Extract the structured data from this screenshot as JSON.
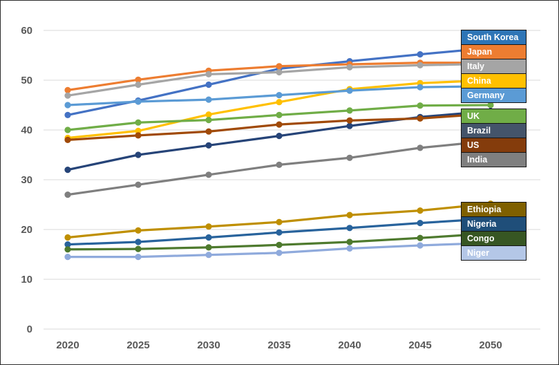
{
  "chart_data": {
    "type": "line",
    "title": "",
    "xlabel": "",
    "ylabel": "",
    "x": [
      2020,
      2025,
      2030,
      2035,
      2040,
      2045,
      2050
    ],
    "yticks": [
      0,
      10,
      20,
      30,
      40,
      50,
      60
    ],
    "ylim": [
      0,
      60
    ],
    "grid": true,
    "marker": "circle",
    "legend_position": "right-overlay",
    "gridline_color": "#D9D9D9",
    "tick_label_color": "#595959",
    "series": [
      {
        "name": "South Korea",
        "line_color": "#4472C4",
        "legend_color": "#2E75B6",
        "values": [
          43.0,
          45.9,
          49.1,
          52.3,
          53.8,
          55.2,
          56.5
        ]
      },
      {
        "name": "Japan",
        "line_color": "#ED7D31",
        "legend_color": "#ED7D31",
        "values": [
          48.0,
          50.1,
          51.9,
          52.8,
          53.2,
          53.5,
          53.5
        ]
      },
      {
        "name": "Italy",
        "line_color": "#A5A5A5",
        "legend_color": "#A5A5A5",
        "values": [
          46.9,
          49.1,
          51.2,
          51.6,
          52.6,
          53.0,
          53.3
        ]
      },
      {
        "name": "China",
        "line_color": "#FFC000",
        "legend_color": "#FFC000",
        "values": [
          38.4,
          39.8,
          43.1,
          45.6,
          48.2,
          49.4,
          50.0
        ]
      },
      {
        "name": "Germany",
        "line_color": "#5B9BD5",
        "legend_color": "#5B9BD5",
        "values": [
          45.0,
          45.7,
          46.1,
          47.0,
          47.9,
          48.6,
          48.8
        ]
      },
      {
        "name": "UK",
        "line_color": "#70AD47",
        "legend_color": "#70AD47",
        "values": [
          40.0,
          41.5,
          42.0,
          43.0,
          43.9,
          44.9,
          45.0
        ]
      },
      {
        "name": "Brazil",
        "line_color": "#264478",
        "legend_color": "#44546A",
        "values": [
          32.0,
          35.0,
          36.9,
          38.8,
          40.8,
          42.6,
          43.8
        ]
      },
      {
        "name": "US",
        "line_color": "#A04A08",
        "legend_color": "#843C0C",
        "values": [
          38.0,
          38.9,
          39.7,
          41.1,
          41.9,
          42.3,
          43.3
        ]
      },
      {
        "name": "India",
        "line_color": "#7F7F7F",
        "legend_color": "#7F7F7F",
        "values": [
          27.0,
          29.0,
          31.0,
          33.0,
          34.4,
          36.4,
          37.8
        ]
      },
      {
        "name": "Ethiopia",
        "line_color": "#BF8F00",
        "legend_color": "#7F6000",
        "values": [
          18.4,
          19.8,
          20.6,
          21.5,
          22.9,
          23.8,
          25.2
        ]
      },
      {
        "name": "Nigeria",
        "line_color": "#28639C",
        "legend_color": "#1F4E79",
        "values": [
          17.0,
          17.5,
          18.4,
          19.4,
          20.3,
          21.3,
          22.2
        ]
      },
      {
        "name": "Congo",
        "line_color": "#4E7A2E",
        "legend_color": "#375623",
        "values": [
          16.0,
          16.1,
          16.4,
          16.9,
          17.5,
          18.3,
          19.2
        ]
      },
      {
        "name": "Niger",
        "line_color": "#8FAADC",
        "legend_color": "#B4C7E7",
        "values": [
          14.5,
          14.5,
          14.9,
          15.3,
          16.2,
          16.8,
          17.3
        ]
      }
    ],
    "legend_groups": [
      {
        "series_names": [
          "South Korea",
          "Japan",
          "Italy",
          "China",
          "Germany"
        ]
      },
      {
        "series_names": [
          "UK",
          "Brazil",
          "US",
          "India"
        ]
      },
      {
        "series_names": [
          "Ethiopia",
          "Nigeria",
          "Congo",
          "Niger"
        ]
      }
    ]
  }
}
